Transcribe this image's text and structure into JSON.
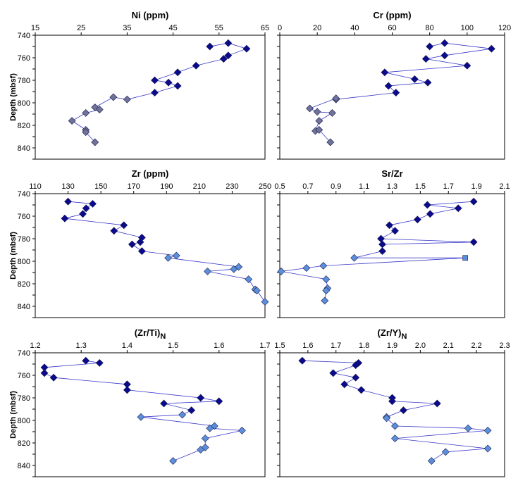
{
  "figure": {
    "colors": {
      "dark": "#0a0a8c",
      "light": "#5b8fd9",
      "gray": "#6f7396",
      "line": "#3a3acb"
    }
  },
  "chart_data": [
    {
      "type": "scatter",
      "title": "Ni (ppm)",
      "title_main": "Ni (ppm)",
      "title_sub": "",
      "ylabel": "Depth (mbsf)",
      "xlim": [
        15,
        65
      ],
      "xticks": [
        "15",
        "25",
        "35",
        "45",
        "55",
        "65"
      ],
      "ylim": [
        740,
        850
      ],
      "yticks": [
        "740",
        "760",
        "780",
        "800",
        "820",
        "840"
      ],
      "y_inverted": true,
      "grid": false,
      "points": [
        {
          "x": 53,
          "y": 750,
          "c": "dark"
        },
        {
          "x": 57,
          "y": 747,
          "c": "dark"
        },
        {
          "x": 61,
          "y": 752,
          "c": "dark"
        },
        {
          "x": 57,
          "y": 758,
          "c": "dark"
        },
        {
          "x": 56,
          "y": 761,
          "c": "dark"
        },
        {
          "x": 50,
          "y": 767,
          "c": "dark"
        },
        {
          "x": 46,
          "y": 773,
          "c": "dark"
        },
        {
          "x": 41,
          "y": 780,
          "c": "dark"
        },
        {
          "x": 44,
          "y": 782,
          "c": "dark"
        },
        {
          "x": 46,
          "y": 785,
          "c": "dark"
        },
        {
          "x": 41,
          "y": 791,
          "c": "dark"
        },
        {
          "x": 35,
          "y": 797,
          "c": "gray"
        },
        {
          "x": 32,
          "y": 795,
          "c": "gray"
        },
        {
          "x": 28,
          "y": 804,
          "c": "gray"
        },
        {
          "x": 29,
          "y": 806,
          "c": "gray"
        },
        {
          "x": 26,
          "y": 809,
          "c": "gray"
        },
        {
          "x": 23,
          "y": 816,
          "c": "gray"
        },
        {
          "x": 26,
          "y": 824,
          "c": "gray"
        },
        {
          "x": 26,
          "y": 826,
          "c": "gray"
        },
        {
          "x": 28,
          "y": 835,
          "c": "gray"
        }
      ]
    },
    {
      "type": "scatter",
      "title": "Cr (ppm)",
      "title_main": "Cr (ppm)",
      "title_sub": "",
      "ylabel": "",
      "xlim": [
        0,
        120
      ],
      "xticks": [
        "0",
        "20",
        "40",
        "60",
        "80",
        "100",
        "120"
      ],
      "ylim": [
        740,
        850
      ],
      "yticks": [],
      "y_inverted": true,
      "grid": false,
      "points": [
        {
          "x": 80,
          "y": 750,
          "c": "dark"
        },
        {
          "x": 88,
          "y": 747,
          "c": "dark"
        },
        {
          "x": 113,
          "y": 752,
          "c": "dark"
        },
        {
          "x": 88,
          "y": 758,
          "c": "dark"
        },
        {
          "x": 78,
          "y": 761,
          "c": "dark"
        },
        {
          "x": 100,
          "y": 767,
          "c": "dark"
        },
        {
          "x": 56,
          "y": 773,
          "c": "dark"
        },
        {
          "x": 72,
          "y": 779,
          "c": "dark"
        },
        {
          "x": 79,
          "y": 782,
          "c": "dark"
        },
        {
          "x": 58,
          "y": 785,
          "c": "dark"
        },
        {
          "x": 62,
          "y": 791,
          "c": "dark"
        },
        {
          "x": 30,
          "y": 797,
          "c": "gray"
        },
        {
          "x": 30,
          "y": 796,
          "c": "gray"
        },
        {
          "x": 16,
          "y": 805,
          "c": "gray"
        },
        {
          "x": 20,
          "y": 808,
          "c": "gray"
        },
        {
          "x": 28,
          "y": 809,
          "c": "gray"
        },
        {
          "x": 21,
          "y": 816,
          "c": "gray"
        },
        {
          "x": 19,
          "y": 825,
          "c": "gray"
        },
        {
          "x": 21,
          "y": 824,
          "c": "gray"
        },
        {
          "x": 27,
          "y": 835,
          "c": "gray"
        }
      ]
    },
    {
      "type": "scatter",
      "title": "Zr (ppm)",
      "title_main": "Zr (ppm)",
      "title_sub": "",
      "ylabel": "Depth (mbsf)",
      "xlim": [
        110,
        250
      ],
      "xticks": [
        "110",
        "130",
        "150",
        "170",
        "190",
        "210",
        "230",
        "250"
      ],
      "ylim": [
        740,
        850
      ],
      "yticks": [
        "740",
        "760",
        "780",
        "800",
        "820",
        "840"
      ],
      "y_inverted": true,
      "grid": false,
      "points": [
        {
          "x": 130,
          "y": 747,
          "c": "dark"
        },
        {
          "x": 145,
          "y": 749,
          "c": "dark"
        },
        {
          "x": 141,
          "y": 753,
          "c": "dark"
        },
        {
          "x": 139,
          "y": 758,
          "c": "dark"
        },
        {
          "x": 128,
          "y": 762,
          "c": "dark"
        },
        {
          "x": 164,
          "y": 768,
          "c": "dark"
        },
        {
          "x": 158,
          "y": 773,
          "c": "dark"
        },
        {
          "x": 175,
          "y": 779,
          "c": "dark"
        },
        {
          "x": 174,
          "y": 783,
          "c": "dark"
        },
        {
          "x": 169,
          "y": 785,
          "c": "dark"
        },
        {
          "x": 175,
          "y": 791,
          "c": "dark"
        },
        {
          "x": 196,
          "y": 795,
          "c": "light"
        },
        {
          "x": 191,
          "y": 797,
          "c": "light"
        },
        {
          "x": 234,
          "y": 805,
          "c": "light"
        },
        {
          "x": 231,
          "y": 807,
          "c": "light"
        },
        {
          "x": 215,
          "y": 809,
          "c": "light"
        },
        {
          "x": 240,
          "y": 816,
          "c": "light"
        },
        {
          "x": 244,
          "y": 825,
          "c": "light"
        },
        {
          "x": 245,
          "y": 826,
          "c": "light"
        },
        {
          "x": 250,
          "y": 836,
          "c": "light"
        }
      ]
    },
    {
      "type": "scatter",
      "title": "Sr/Zr",
      "title_main": "Sr/Zr",
      "title_sub": "",
      "ylabel": "",
      "xlim": [
        0.5,
        2.1
      ],
      "xticks": [
        "0.5",
        "0.7",
        "0.9",
        "1.1",
        "1.3",
        "1.5",
        "1.7",
        "1.9",
        "2.1"
      ],
      "ylim": [
        740,
        850
      ],
      "yticks": [],
      "y_inverted": true,
      "grid": false,
      "points": [
        {
          "x": 1.88,
          "y": 747,
          "c": "dark"
        },
        {
          "x": 1.55,
          "y": 750,
          "c": "dark"
        },
        {
          "x": 1.77,
          "y": 753,
          "c": "dark"
        },
        {
          "x": 1.57,
          "y": 758,
          "c": "dark"
        },
        {
          "x": 1.48,
          "y": 763,
          "c": "dark"
        },
        {
          "x": 1.28,
          "y": 768,
          "c": "dark"
        },
        {
          "x": 1.32,
          "y": 773,
          "c": "dark"
        },
        {
          "x": 1.22,
          "y": 780,
          "c": "dark"
        },
        {
          "x": 1.88,
          "y": 783,
          "c": "dark"
        },
        {
          "x": 1.23,
          "y": 785,
          "c": "dark"
        },
        {
          "x": 1.23,
          "y": 791,
          "c": "dark"
        },
        {
          "x": 1.03,
          "y": 797,
          "c": "light"
        },
        {
          "x": 1.82,
          "y": 797,
          "c": "square"
        },
        {
          "x": 0.81,
          "y": 804,
          "c": "light"
        },
        {
          "x": 0.69,
          "y": 806,
          "c": "light"
        },
        {
          "x": 0.51,
          "y": 809,
          "c": "light"
        },
        {
          "x": 0.83,
          "y": 816,
          "c": "light"
        },
        {
          "x": 0.84,
          "y": 824,
          "c": "light"
        },
        {
          "x": 0.83,
          "y": 826,
          "c": "light"
        },
        {
          "x": 0.82,
          "y": 835,
          "c": "light"
        }
      ]
    },
    {
      "type": "scatter",
      "title": "(Zr/Ti)N",
      "title_main": "(Zr/Ti)",
      "title_sub": "N",
      "ylabel": "Depth (mbsf)",
      "xlim": [
        1.2,
        1.7
      ],
      "xticks": [
        "1.2",
        "1.3",
        "1.4",
        "1.5",
        "1.6",
        "1.7"
      ],
      "ylim": [
        740,
        850
      ],
      "yticks": [
        "740",
        "760",
        "780",
        "800",
        "820",
        "840"
      ],
      "y_inverted": true,
      "grid": false,
      "points": [
        {
          "x": 1.31,
          "y": 747,
          "c": "dark"
        },
        {
          "x": 1.34,
          "y": 749,
          "c": "dark"
        },
        {
          "x": 1.22,
          "y": 753,
          "c": "dark"
        },
        {
          "x": 1.22,
          "y": 758,
          "c": "dark"
        },
        {
          "x": 1.24,
          "y": 762,
          "c": "dark"
        },
        {
          "x": 1.4,
          "y": 768,
          "c": "dark"
        },
        {
          "x": 1.4,
          "y": 773,
          "c": "dark"
        },
        {
          "x": 1.56,
          "y": 780,
          "c": "dark"
        },
        {
          "x": 1.6,
          "y": 783,
          "c": "dark"
        },
        {
          "x": 1.48,
          "y": 785,
          "c": "dark"
        },
        {
          "x": 1.54,
          "y": 791,
          "c": "dark"
        },
        {
          "x": 1.52,
          "y": 795,
          "c": "light"
        },
        {
          "x": 1.43,
          "y": 797,
          "c": "light"
        },
        {
          "x": 1.59,
          "y": 805,
          "c": "light"
        },
        {
          "x": 1.58,
          "y": 807,
          "c": "light"
        },
        {
          "x": 1.65,
          "y": 809,
          "c": "light"
        },
        {
          "x": 1.57,
          "y": 816,
          "c": "light"
        },
        {
          "x": 1.57,
          "y": 824,
          "c": "light"
        },
        {
          "x": 1.56,
          "y": 826,
          "c": "light"
        },
        {
          "x": 1.5,
          "y": 836,
          "c": "light"
        }
      ]
    },
    {
      "type": "scatter",
      "title": "(Zr/Y)N",
      "title_main": "(Zr/Y)",
      "title_sub": "N",
      "ylabel": "",
      "xlim": [
        1.5,
        2.3
      ],
      "xticks": [
        "1.5",
        "1.6",
        "1.7",
        "1.8",
        "1.9",
        "2.0",
        "2.1",
        "2.2",
        "2.3"
      ],
      "ylim": [
        740,
        850
      ],
      "yticks": [],
      "y_inverted": true,
      "grid": false,
      "points": [
        {
          "x": 1.58,
          "y": 747,
          "c": "dark"
        },
        {
          "x": 1.78,
          "y": 749,
          "c": "dark"
        },
        {
          "x": 1.77,
          "y": 751,
          "c": "dark"
        },
        {
          "x": 1.69,
          "y": 758,
          "c": "dark"
        },
        {
          "x": 1.77,
          "y": 762,
          "c": "dark"
        },
        {
          "x": 1.73,
          "y": 768,
          "c": "dark"
        },
        {
          "x": 1.79,
          "y": 773,
          "c": "dark"
        },
        {
          "x": 1.9,
          "y": 780,
          "c": "dark"
        },
        {
          "x": 1.9,
          "y": 783,
          "c": "dark"
        },
        {
          "x": 2.06,
          "y": 785,
          "c": "dark"
        },
        {
          "x": 1.94,
          "y": 791,
          "c": "dark"
        },
        {
          "x": 1.88,
          "y": 797,
          "c": "light"
        },
        {
          "x": 1.88,
          "y": 798,
          "c": "light"
        },
        {
          "x": 1.91,
          "y": 805,
          "c": "light"
        },
        {
          "x": 2.17,
          "y": 807,
          "c": "light"
        },
        {
          "x": 2.24,
          "y": 809,
          "c": "light"
        },
        {
          "x": 1.91,
          "y": 816,
          "c": "light"
        },
        {
          "x": 2.24,
          "y": 825,
          "c": "light"
        },
        {
          "x": 2.09,
          "y": 828,
          "c": "light"
        },
        {
          "x": 2.04,
          "y": 836,
          "c": "light"
        }
      ]
    }
  ]
}
